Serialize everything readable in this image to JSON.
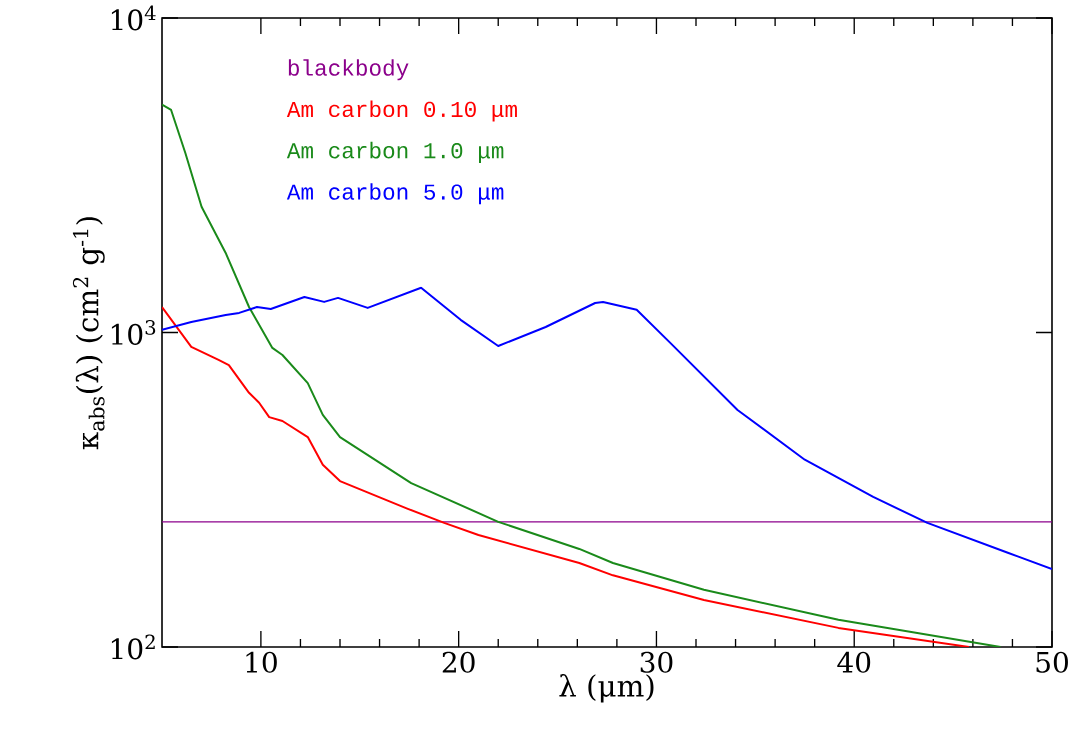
{
  "chart_data": {
    "type": "line",
    "xlabel": "λ (μm)",
    "ylabel": "κ$_{abs}$(λ)  (cm$^{2}$ g$^{-1}$)",
    "xlim": [
      5,
      50
    ],
    "xticks": [
      10,
      20,
      30,
      40,
      50
    ],
    "ylim": [
      100,
      10000
    ],
    "yticks": [
      {
        "value": 100,
        "label": "10$^{2}$"
      },
      {
        "value": 1000,
        "label": "10$^{3}$"
      },
      {
        "value": 10000,
        "label": "10$^{4}$"
      }
    ],
    "log": "y",
    "legend": "top left",
    "grid": false,
    "marker": "none",
    "line_style": "solid",
    "series": [
      {
        "name": "blackbody",
        "color": "#8b008b",
        "x": [
          5,
          50
        ],
        "values": [
          250,
          250
        ]
      },
      {
        "name": "Am carbon  0.10 μm",
        "color": "#ff0000",
        "x": [
          5,
          6.48,
          7.86,
          8.38,
          9.4,
          9.91,
          10.42,
          11.09,
          12.37,
          13.13,
          14.0,
          17.43,
          19.27,
          21.0,
          26.1,
          27.8,
          32.4,
          39.2,
          45.8
        ],
        "values": [
          1205,
          900,
          818,
          788,
          643,
          598,
          538,
          523,
          465,
          380,
          337,
          275,
          248,
          227,
          185,
          169,
          141,
          115,
          100
        ]
      },
      {
        "name": "Am carbon  1.0 μm",
        "color": "#1a8a1a",
        "x": [
          5,
          5.46,
          6.18,
          7.0,
          8.22,
          9.4,
          10.58,
          11.09,
          12.37,
          13.13,
          14.0,
          17.6,
          22.0,
          26.1,
          27.8,
          32.4,
          39.2,
          47.4
        ],
        "values": [
          5300,
          5100,
          3720,
          2510,
          1790,
          1205,
          893,
          848,
          690,
          547,
          465,
          332,
          250,
          205,
          185,
          152,
          122,
          100
        ]
      },
      {
        "name": "Am carbon  5.0 μm",
        "color": "#0000ff",
        "x": [
          5,
          6.48,
          8.22,
          8.9,
          9.8,
          10.5,
          12.2,
          13.2,
          13.9,
          15.4,
          18.1,
          20.1,
          22.0,
          24.4,
          26.9,
          27.3,
          29.0,
          30.7,
          34.1,
          37.5,
          40.96,
          43.7,
          47.8,
          50
        ],
        "values": [
          1020,
          1080,
          1137,
          1154,
          1205,
          1188,
          1297,
          1251,
          1288,
          1197,
          1387,
          1097,
          906,
          1041,
          1241,
          1250,
          1181,
          927,
          567,
          394,
          300,
          248,
          199,
          177
        ]
      }
    ]
  }
}
